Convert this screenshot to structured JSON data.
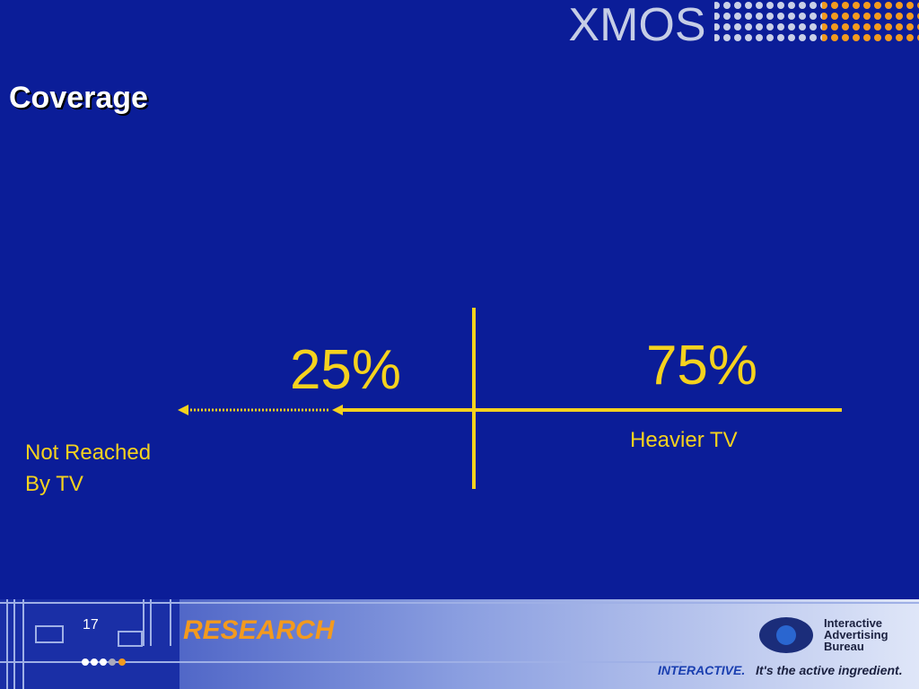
{
  "header": {
    "logo": "XMOS",
    "title": "Coverage"
  },
  "diagram": {
    "left_value": "25%",
    "right_value": "75%",
    "left_label": [
      "Not Reached",
      "By TV"
    ],
    "right_label": "Heavier TV"
  },
  "footer": {
    "page": "17",
    "section": "RESEARCH",
    "org": [
      "Interactive",
      "Advertising",
      "Bureau"
    ],
    "tagline_a": "INTERACTIVE.",
    "tagline_b": "It's the active ingredient."
  }
}
